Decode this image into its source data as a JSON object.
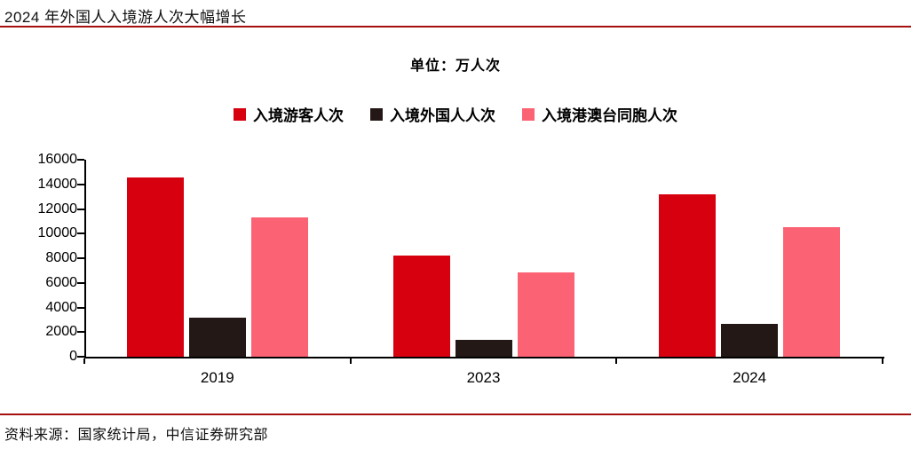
{
  "page": {
    "title": "2024 年外国人入境游人次大幅增长",
    "unit_label": "单位：万人次",
    "source": "资料来源：国家统计局，中信证券研究部"
  },
  "colors": {
    "separator_line": "#A5100F",
    "axis": "#000000",
    "text": "#111111"
  },
  "chart_data": {
    "type": "bar",
    "title": "2024 年外国人入境游人次大幅增长",
    "subtitle": "单位：万人次",
    "categories": [
      "2019",
      "2023",
      "2024"
    ],
    "series": [
      {
        "name": "入境游客人次",
        "color": "#D7000F",
        "values": [
          14531,
          8203,
          13190
        ]
      },
      {
        "name": "入境外国人人次",
        "color": "#231815",
        "values": [
          3188,
          1378,
          2694
        ]
      },
      {
        "name": "入境港澳台同胞人次",
        "color": "#FB6374",
        "values": [
          11343,
          6825,
          10496
        ]
      }
    ],
    "ylabel": "",
    "xlabel": "",
    "ylim": [
      0,
      16000
    ],
    "ytick_step": 2000,
    "grid": false,
    "legend_position": "top"
  }
}
